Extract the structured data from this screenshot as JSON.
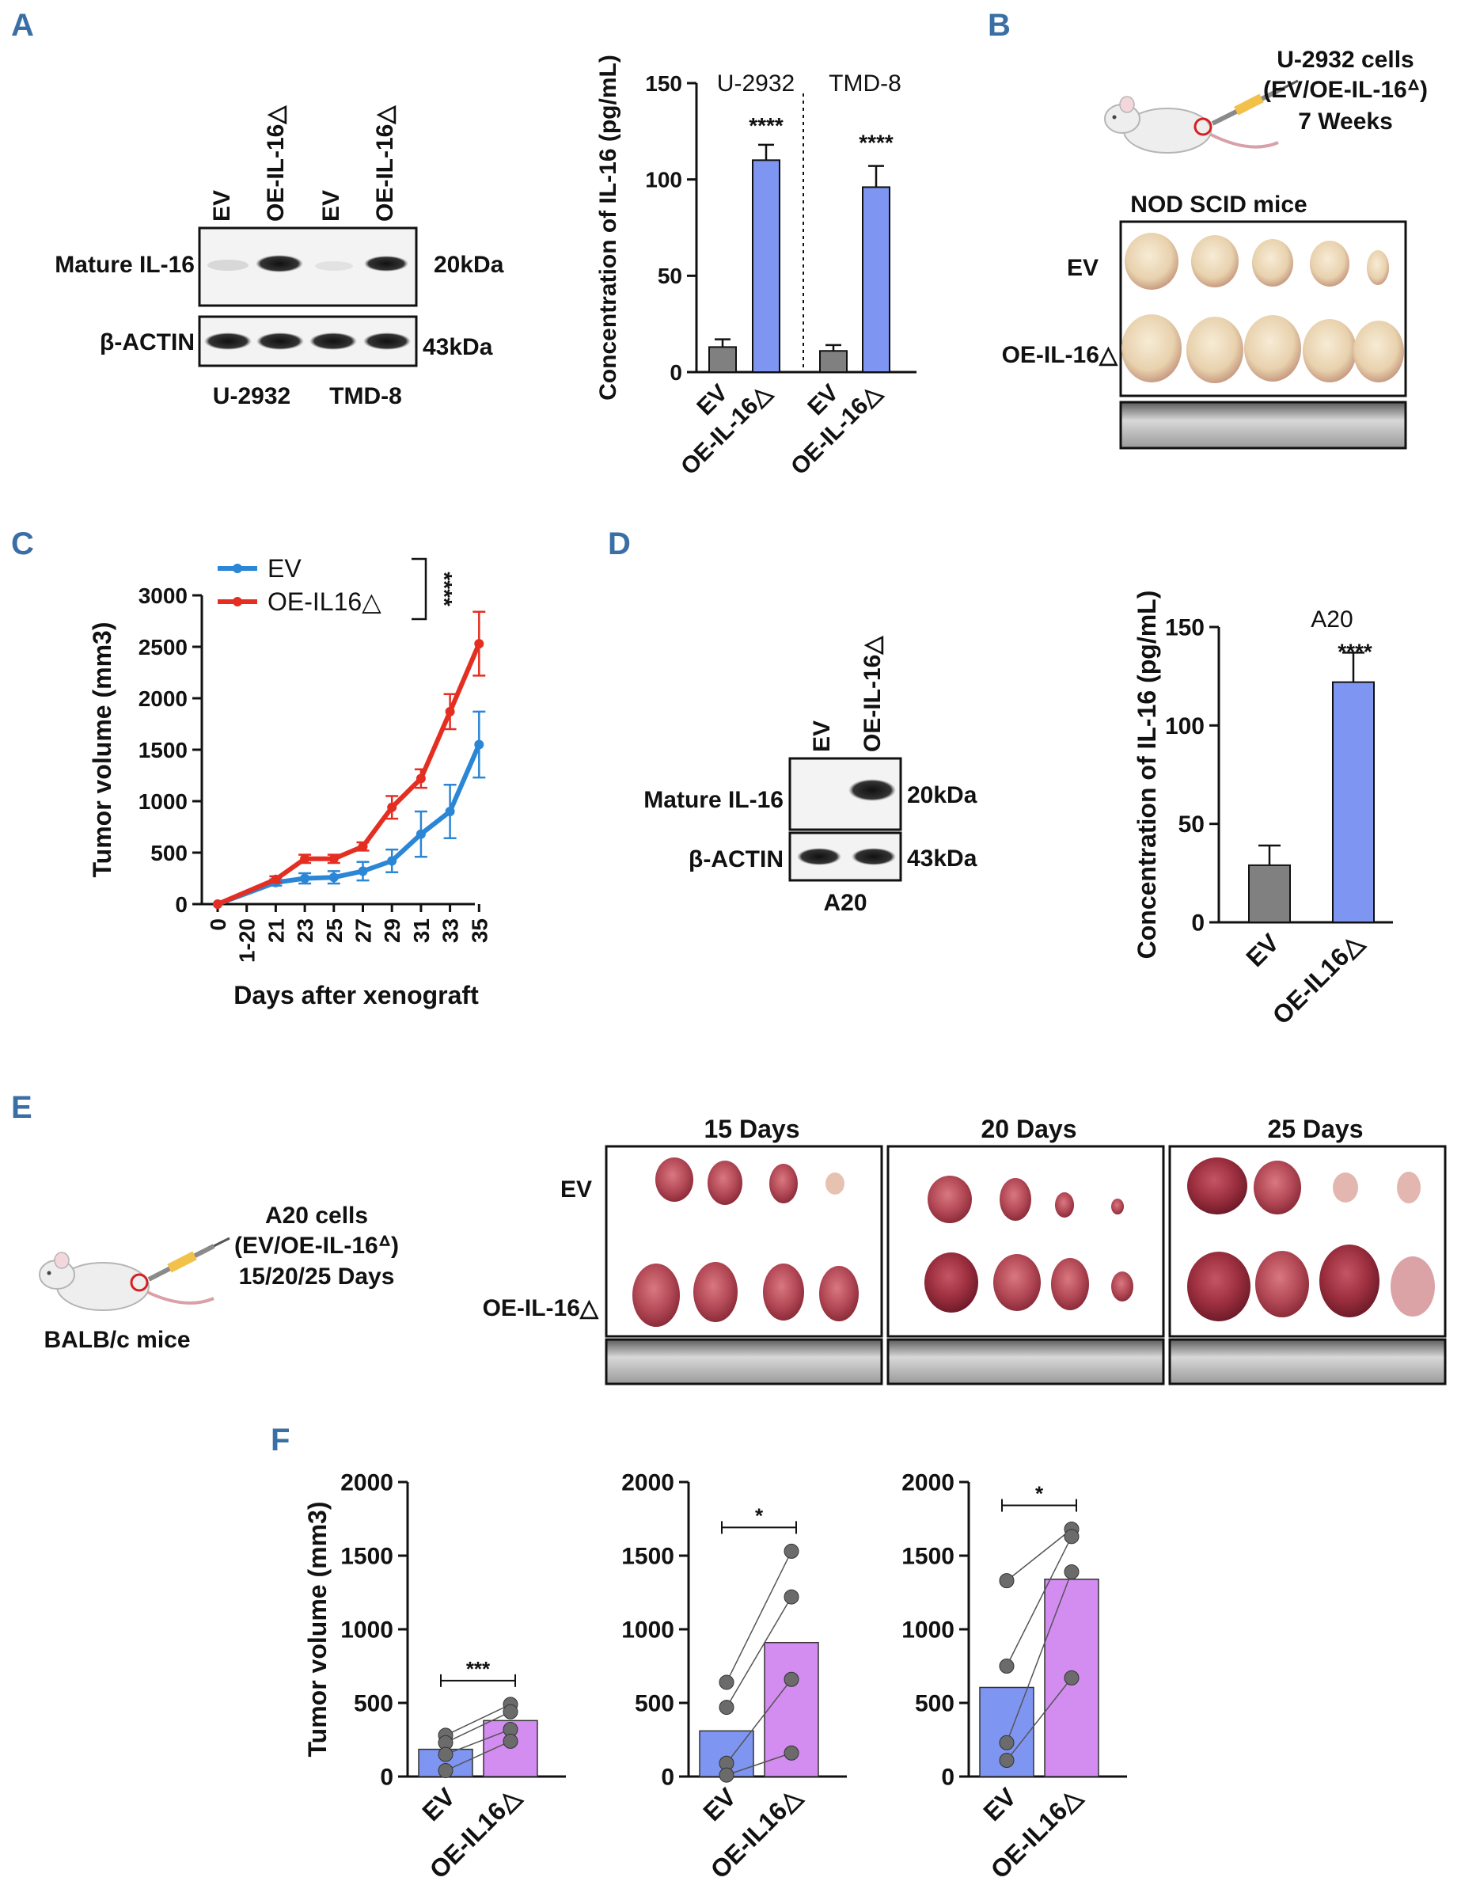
{
  "panel_letters": {
    "a": "A",
    "b": "B",
    "c": "C",
    "d": "D",
    "e": "E",
    "f": "F"
  },
  "panelA": {
    "lanes": [
      "EV",
      "OE-IL-16△",
      "EV",
      "OE-IL-16△"
    ],
    "rows": [
      "Mature IL-16",
      "β-ACTIN"
    ],
    "sizes": [
      "20kDa",
      "43kDa"
    ],
    "groups": [
      "U-2932",
      "TMD-8"
    ]
  },
  "panelB": {
    "cells_line1": "U-2932 cells",
    "cells_line2": "(EV/OE-IL-16ᐞ)",
    "cells_line3": "7 Weeks",
    "mice": "NOD SCID mice",
    "row_ev": "EV",
    "row_oe": "OE-IL-16△"
  },
  "panelD": {
    "lanes": [
      "EV",
      "OE-IL-16△"
    ],
    "rows": [
      "Mature IL-16",
      "β-ACTIN"
    ],
    "sizes": [
      "20kDa",
      "43kDa"
    ],
    "group": "A20"
  },
  "panelE": {
    "cells_line1": "A20 cells",
    "cells_line2": "(EV/OE-IL-16ᐞ)",
    "cells_line3": "15/20/25 Days",
    "mice": "BALB/c mice",
    "row_ev": "EV",
    "row_oe": "OE-IL-16△",
    "timepoints": [
      "15 Days",
      "20 Days",
      "25 Days"
    ]
  },
  "chart_data": [
    {
      "id": "A-elisa",
      "type": "bar",
      "ylabel": "Concentration of IL-16 (pg/mL)",
      "ylim": [
        0,
        150
      ],
      "yticks": [
        0,
        50,
        100,
        150
      ],
      "groups": [
        "U-2932",
        "TMD-8"
      ],
      "categories": [
        "EV",
        "OE-IL-16△",
        "EV",
        "OE-IL-16△"
      ],
      "values": [
        13,
        110,
        11,
        96
      ],
      "errors": [
        4,
        8,
        3,
        11
      ],
      "colors": [
        "#808080",
        "#7f95f2",
        "#808080",
        "#7f95f2"
      ],
      "significance": [
        "****",
        "****"
      ]
    },
    {
      "id": "C-growth",
      "type": "line",
      "ylabel": "Tumor volume (mm3)",
      "xlabel": "Days after xenograft",
      "ylim": [
        0,
        3000
      ],
      "yticks": [
        0,
        500,
        1000,
        1500,
        2000,
        2500,
        3000
      ],
      "x": [
        "0",
        "1-20",
        "21",
        "23",
        "25",
        "27",
        "29",
        "31",
        "33",
        "35"
      ],
      "series": [
        {
          "name": "EV",
          "color": "#2b86d6",
          "values": [
            0,
            null,
            210,
            250,
            260,
            320,
            420,
            680,
            900,
            1550
          ],
          "errors": [
            0,
            null,
            30,
            50,
            60,
            90,
            110,
            220,
            260,
            320
          ]
        },
        {
          "name": "OE-IL16△",
          "color": "#e52e22",
          "values": [
            0,
            null,
            240,
            440,
            440,
            560,
            940,
            1220,
            1870,
            2530
          ],
          "errors": [
            0,
            null,
            30,
            40,
            40,
            40,
            110,
            90,
            170,
            310
          ]
        }
      ],
      "significance": "****"
    },
    {
      "id": "D-elisa",
      "type": "bar",
      "title": "A20",
      "ylabel": "Concentration of IL-16 (pg/mL)",
      "ylim": [
        0,
        150
      ],
      "yticks": [
        0,
        50,
        100,
        150
      ],
      "categories": [
        "EV",
        "OE-IL16△"
      ],
      "values": [
        29,
        122
      ],
      "errors": [
        10,
        15
      ],
      "colors": [
        "#808080",
        "#7f95f2"
      ],
      "significance": "****"
    },
    {
      "id": "F-15d",
      "type": "bar",
      "ylabel": "Tumor volume (mm3)",
      "ylim": [
        0,
        2000
      ],
      "yticks": [
        0,
        500,
        1000,
        1500,
        2000
      ],
      "categories": [
        "EV",
        "OE-IL16△"
      ],
      "values": [
        185,
        380
      ],
      "points": [
        [
          280,
          230,
          150,
          40
        ],
        [
          490,
          440,
          320,
          240
        ]
      ],
      "colors": [
        "#7f95f2",
        "#d38cf0"
      ],
      "significance": "***"
    },
    {
      "id": "F-20d",
      "type": "bar",
      "ylim": [
        0,
        2000
      ],
      "yticks": [
        0,
        500,
        1000,
        1500,
        2000
      ],
      "categories": [
        "EV",
        "OE-IL16△"
      ],
      "values": [
        310,
        910
      ],
      "points": [
        [
          640,
          470,
          90,
          10
        ],
        [
          1530,
          1220,
          660,
          160
        ]
      ],
      "colors": [
        "#7f95f2",
        "#d38cf0"
      ],
      "significance": "*"
    },
    {
      "id": "F-25d",
      "type": "bar",
      "ylim": [
        0,
        2000
      ],
      "yticks": [
        0,
        500,
        1000,
        1500,
        2000
      ],
      "categories": [
        "EV",
        "OE-IL16△"
      ],
      "values": [
        605,
        1340
      ],
      "points": [
        [
          1330,
          750,
          230,
          110
        ],
        [
          1680,
          1630,
          1390,
          670
        ]
      ],
      "colors": [
        "#7f95f2",
        "#d38cf0"
      ],
      "significance": "*"
    }
  ]
}
